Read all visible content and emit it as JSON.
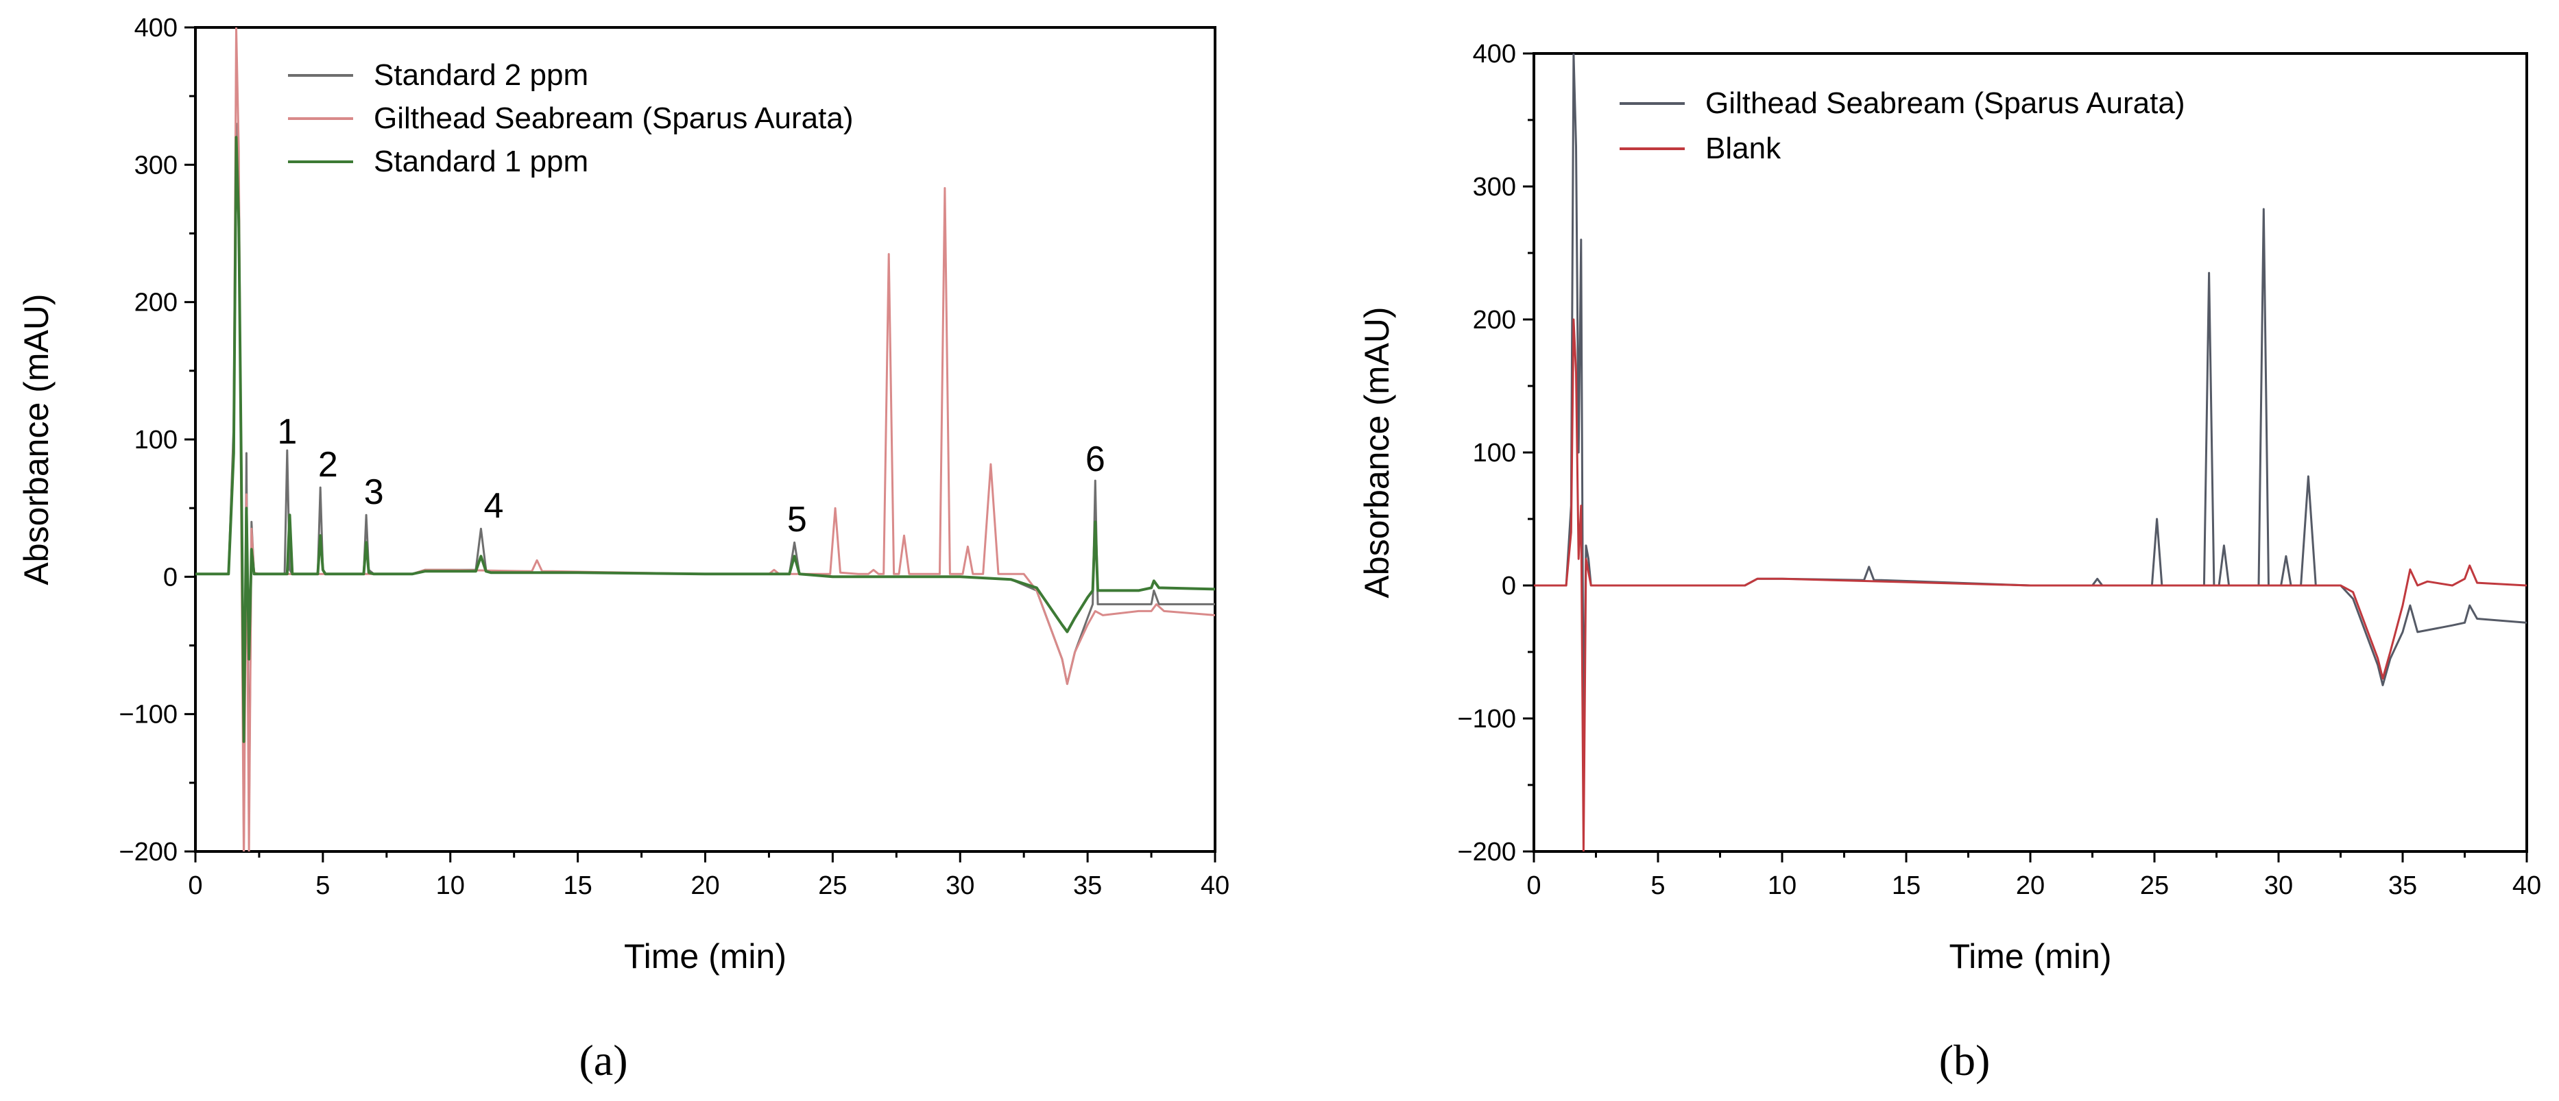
{
  "chart_data": [
    {
      "type": "line",
      "panel_label": "(a)",
      "xlabel": "Time (min)",
      "ylabel": "Absorbance (mAU)",
      "xlim": [
        0,
        40
      ],
      "ylim": [
        -200,
        400
      ],
      "xticks": [
        0,
        5,
        10,
        15,
        20,
        25,
        30,
        35,
        40
      ],
      "yticks": [
        -200,
        -100,
        0,
        100,
        200,
        300,
        400
      ],
      "grid": false,
      "legend_position": "top-left",
      "series": [
        {
          "name": "Standard 2 ppm",
          "color": "#6e6e6e",
          "x": [
            0,
            1.3,
            1.5,
            1.6,
            1.7,
            1.8,
            1.9,
            2.0,
            2.1,
            2.2,
            2.3,
            2.5,
            3.0,
            3.5,
            3.6,
            3.7,
            3.8,
            4.5,
            4.8,
            4.9,
            5.0,
            5.1,
            6.0,
            6.6,
            6.7,
            6.8,
            7.0,
            8.5,
            9.0,
            11.0,
            11.2,
            11.4,
            11.6,
            15.0,
            20.0,
            23.3,
            23.5,
            23.7,
            25.0,
            30.0,
            32.0,
            33.0,
            34.0,
            34.2,
            34.5,
            35.0,
            35.2,
            35.3,
            35.4,
            35.6,
            37.0,
            37.5,
            37.6,
            37.8,
            40.0
          ],
          "y": [
            2,
            2,
            110,
            330,
            250,
            90,
            -190,
            90,
            -180,
            40,
            2,
            2,
            2,
            2,
            92,
            5,
            2,
            2,
            2,
            65,
            5,
            2,
            2,
            2,
            45,
            5,
            2,
            2,
            5,
            5,
            35,
            5,
            3,
            3,
            2,
            2,
            25,
            2,
            0,
            0,
            -2,
            -10,
            -60,
            -78,
            -55,
            -30,
            -20,
            70,
            -20,
            -20,
            -20,
            -20,
            -10,
            -20,
            -20
          ]
        },
        {
          "name": "Gilthead Seabream (Sparus Aurata)",
          "color": "#d98a8a",
          "x": [
            0,
            1.3,
            1.5,
            1.6,
            1.7,
            1.8,
            1.9,
            2.0,
            2.1,
            2.2,
            2.3,
            2.5,
            3.0,
            8.5,
            9.0,
            10.0,
            13.2,
            13.4,
            13.6,
            14.0,
            20.0,
            22.5,
            22.7,
            22.9,
            23.1,
            24.9,
            25.1,
            25.3,
            26.0,
            26.4,
            26.6,
            26.8,
            27.0,
            27.2,
            27.4,
            27.6,
            27.8,
            28.0,
            28.2,
            29.0,
            29.2,
            29.4,
            29.6,
            29.8,
            30.1,
            30.3,
            30.5,
            30.9,
            31.2,
            31.5,
            31.8,
            32.5,
            33.0,
            34.0,
            34.2,
            34.5,
            35.0,
            35.3,
            35.6,
            37.0,
            37.5,
            37.7,
            38.0,
            40.0
          ],
          "y": [
            2,
            2,
            100,
            400,
            310,
            40,
            -210,
            60,
            -200,
            35,
            3,
            2,
            2,
            2,
            5,
            5,
            4,
            12,
            4,
            4,
            2,
            2,
            5,
            2,
            2,
            2,
            50,
            3,
            2,
            2,
            5,
            2,
            2,
            235,
            2,
            2,
            30,
            2,
            2,
            2,
            2,
            283,
            2,
            2,
            2,
            22,
            2,
            2,
            82,
            2,
            2,
            2,
            -10,
            -60,
            -78,
            -55,
            -35,
            -25,
            -28,
            -25,
            -25,
            -20,
            -25,
            -28
          ]
        },
        {
          "name": "Standard 1 ppm",
          "color": "#3d7a35",
          "x": [
            0,
            1.3,
            1.5,
            1.6,
            1.7,
            1.8,
            1.9,
            2.0,
            2.1,
            2.2,
            2.3,
            2.5,
            3.0,
            3.6,
            3.7,
            3.8,
            4.8,
            4.9,
            5.0,
            5.1,
            6.6,
            6.7,
            6.8,
            7.0,
            8.5,
            9.0,
            11.0,
            11.2,
            11.4,
            11.6,
            15.0,
            20.0,
            23.3,
            23.5,
            23.7,
            25.0,
            30.0,
            32.0,
            33.0,
            34.0,
            34.2,
            34.5,
            35.0,
            35.2,
            35.3,
            35.4,
            35.6,
            37.0,
            37.5,
            37.6,
            37.8,
            40.0
          ],
          "y": [
            2,
            2,
            90,
            320,
            260,
            80,
            -120,
            50,
            -60,
            20,
            2,
            2,
            2,
            2,
            45,
            2,
            2,
            30,
            5,
            2,
            2,
            25,
            3,
            2,
            2,
            4,
            4,
            15,
            4,
            3,
            3,
            2,
            2,
            15,
            2,
            0,
            0,
            -2,
            -8,
            -35,
            -40,
            -30,
            -15,
            -10,
            40,
            -10,
            -10,
            -10,
            -8,
            -3,
            -8,
            -9
          ]
        }
      ],
      "annotations": [
        {
          "text": "1",
          "x": 3.6,
          "y": 92
        },
        {
          "text": "2",
          "x": 5.2,
          "y": 68
        },
        {
          "text": "3",
          "x": 7.0,
          "y": 48
        },
        {
          "text": "4",
          "x": 11.7,
          "y": 38
        },
        {
          "text": "5",
          "x": 23.6,
          "y": 28
        },
        {
          "text": "6",
          "x": 35.3,
          "y": 72
        }
      ]
    },
    {
      "type": "line",
      "panel_label": "(b)",
      "xlabel": "Time (min)",
      "ylabel": "Absorbance (mAU)",
      "xlim": [
        0,
        40
      ],
      "ylim": [
        -200,
        400
      ],
      "xticks": [
        0,
        5,
        10,
        15,
        20,
        25,
        30,
        35,
        40
      ],
      "yticks": [
        -200,
        -100,
        0,
        100,
        200,
        300,
        400
      ],
      "grid": false,
      "legend_position": "top-left",
      "series": [
        {
          "name": "Gilthead Seabream (Sparus Aurata)",
          "color": "#555a66",
          "x": [
            0,
            1.3,
            1.5,
            1.6,
            1.7,
            1.8,
            1.9,
            2.0,
            2.1,
            2.2,
            2.3,
            2.5,
            3.0,
            8.5,
            9.0,
            10.0,
            13.3,
            13.5,
            13.7,
            14.0,
            20.0,
            22.5,
            22.7,
            22.9,
            24.9,
            25.1,
            25.3,
            26.0,
            27.0,
            27.2,
            27.4,
            27.6,
            27.8,
            28.0,
            29.2,
            29.4,
            29.6,
            30.1,
            30.3,
            30.5,
            30.9,
            31.2,
            31.5,
            32.5,
            33.0,
            34.0,
            34.2,
            34.5,
            35.0,
            35.3,
            35.6,
            37.0,
            37.5,
            37.7,
            38.0,
            40.0
          ],
          "y": [
            0,
            0,
            60,
            400,
            330,
            100,
            260,
            -120,
            30,
            20,
            0,
            0,
            0,
            0,
            5,
            5,
            4,
            14,
            4,
            4,
            0,
            0,
            5,
            0,
            0,
            50,
            0,
            0,
            0,
            235,
            0,
            0,
            30,
            0,
            0,
            283,
            0,
            0,
            22,
            0,
            0,
            82,
            0,
            0,
            -10,
            -60,
            -75,
            -55,
            -35,
            -15,
            -35,
            -30,
            -28,
            -15,
            -25,
            -28
          ]
        },
        {
          "name": "Blank",
          "color": "#c0393e",
          "x": [
            0,
            1.3,
            1.5,
            1.6,
            1.7,
            1.8,
            1.9,
            2.0,
            2.1,
            2.2,
            2.3,
            2.5,
            3.0,
            8.5,
            9.0,
            10.0,
            20.0,
            25.0,
            30.0,
            32.5,
            33.0,
            34.0,
            34.2,
            34.5,
            35.0,
            35.3,
            35.6,
            36.0,
            37.0,
            37.5,
            37.7,
            38.0,
            40.0
          ],
          "y": [
            0,
            0,
            40,
            200,
            160,
            20,
            60,
            -200,
            20,
            10,
            0,
            0,
            0,
            0,
            5,
            5,
            0,
            0,
            0,
            0,
            -5,
            -55,
            -70,
            -50,
            -15,
            12,
            0,
            3,
            0,
            5,
            15,
            2,
            0
          ]
        }
      ],
      "annotations": []
    }
  ]
}
